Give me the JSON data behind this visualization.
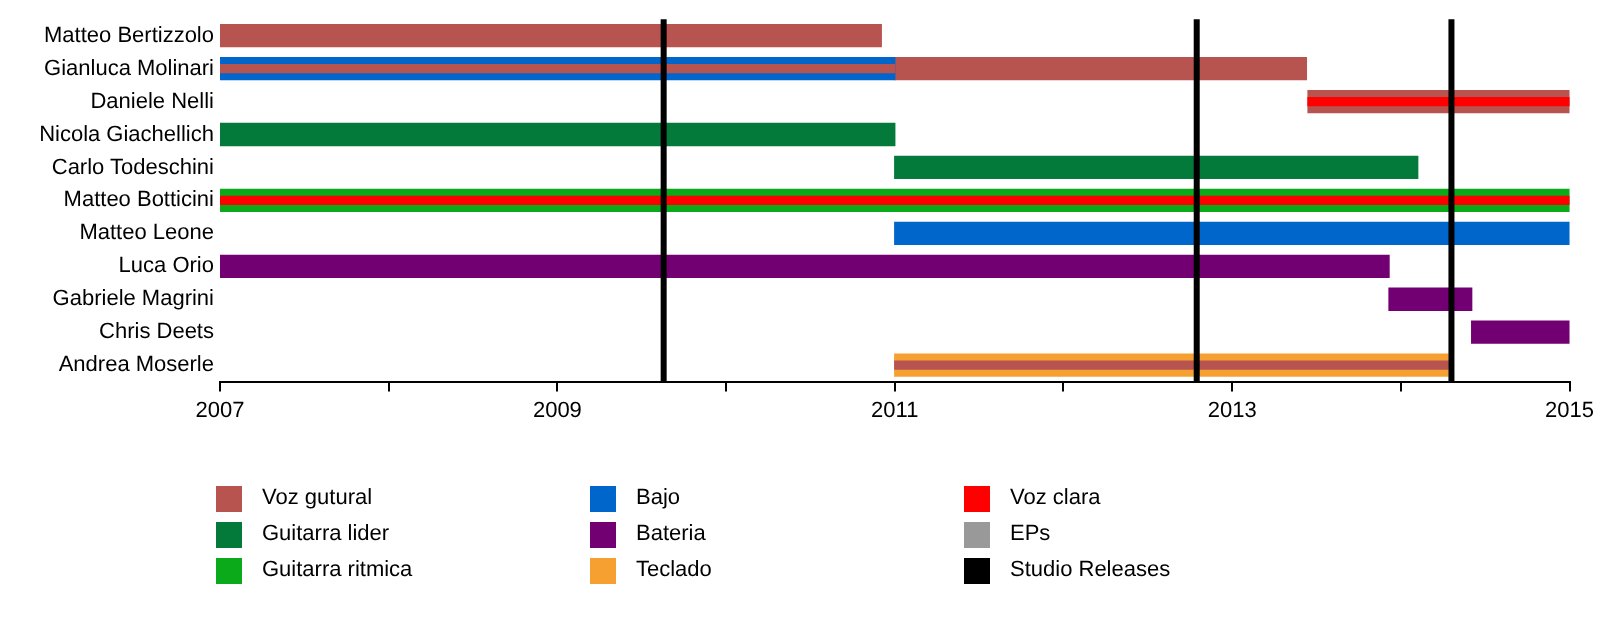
{
  "chart_data": {
    "type": "bar",
    "orientation": "horizontal",
    "categories": [
      "Matteo Bertizzolo",
      "Gianluca Molinari",
      "Daniele Nelli",
      "Nicola Giachellich",
      "Carlo Todeschini",
      "Matteo Botticini",
      "Matteo Leone",
      "Luca Orio",
      "Gabriele Magrini",
      "Chris Deets",
      "Andrea Moserle"
    ],
    "series": [
      {
        "name": "Voz gutural",
        "color": "#b85450",
        "base": [
          2007,
          2011,
          2013.45,
          null,
          null,
          null,
          null,
          null,
          null,
          null,
          null
        ],
        "values": [
          3.92,
          2.44,
          1.55,
          null,
          null,
          null,
          null,
          null,
          null,
          null,
          null
        ]
      },
      {
        "name": "Guitarra lider",
        "color": "#047a3a",
        "base": [
          null,
          null,
          null,
          2007,
          2011,
          null,
          null,
          null,
          null,
          null,
          null
        ],
        "values": [
          null,
          null,
          null,
          4,
          3.1,
          null,
          null,
          null,
          null,
          null,
          null
        ]
      },
      {
        "name": "Guitarra ritmica",
        "color": "#0aaa1a",
        "base": [
          null,
          null,
          null,
          null,
          null,
          2007,
          null,
          null,
          null,
          null,
          null
        ],
        "values": [
          null,
          null,
          null,
          null,
          null,
          8,
          null,
          null,
          null,
          null,
          null
        ]
      },
      {
        "name": "Bajo",
        "color": "#0066cc",
        "base": [
          null,
          2007,
          null,
          null,
          null,
          null,
          2011,
          null,
          null,
          null,
          null
        ],
        "values": [
          null,
          4,
          null,
          null,
          null,
          null,
          4,
          null,
          null,
          null,
          null
        ]
      },
      {
        "name": "Bateria",
        "color": "#720072",
        "base": [
          null,
          null,
          null,
          null,
          null,
          null,
          null,
          2007,
          2013.93,
          2014.42,
          null
        ],
        "values": [
          null,
          null,
          null,
          null,
          null,
          null,
          null,
          6.93,
          0.49,
          0.58,
          null
        ]
      },
      {
        "name": "Teclado",
        "color": "#f5a030",
        "base": [
          null,
          null,
          null,
          null,
          null,
          null,
          null,
          null,
          null,
          null,
          2011
        ],
        "values": [
          null,
          null,
          null,
          null,
          null,
          null,
          null,
          null,
          null,
          null,
          3.28
        ]
      },
      {
        "name": "Voz clara",
        "color": "#ff0000",
        "base": [
          null,
          null,
          2013.45,
          null,
          null,
          2007,
          null,
          null,
          null,
          null,
          null
        ],
        "values": [
          null,
          null,
          1.55,
          null,
          null,
          8,
          null,
          null,
          null,
          null,
          null
        ]
      },
      {
        "name": "EPs",
        "color": "#999999",
        "values": [
          null,
          null,
          null,
          null,
          null,
          null,
          null,
          null,
          null,
          null,
          null
        ]
      },
      {
        "color": "#b85450",
        "base": [
          null,
          2007,
          null,
          null,
          null,
          null,
          null,
          null,
          null,
          null,
          2011
        ],
        "values": [
          null,
          4,
          null,
          null,
          null,
          null,
          null,
          null,
          null,
          null,
          3.28
        ]
      }
    ],
    "xlim": [
      2007,
      2015
    ],
    "xticks": [
      2007,
      {
        "value": 2008,
        "label": null
      },
      2009,
      {
        "value": 2010,
        "label": null
      },
      2011,
      {
        "value": 2012,
        "label": null
      },
      2013,
      {
        "value": 2014,
        "label": null
      },
      2015
    ],
    "ref_lines": [
      {
        "axis": "x",
        "value": 2009.63,
        "label": "Studio Releases",
        "color": "#000000"
      },
      {
        "axis": "x",
        "value": 2012.79,
        "color": "#000000"
      },
      {
        "axis": "x",
        "value": 2014.3,
        "color": "#000000"
      }
    ],
    "grid": false,
    "legend": "bottom"
  }
}
